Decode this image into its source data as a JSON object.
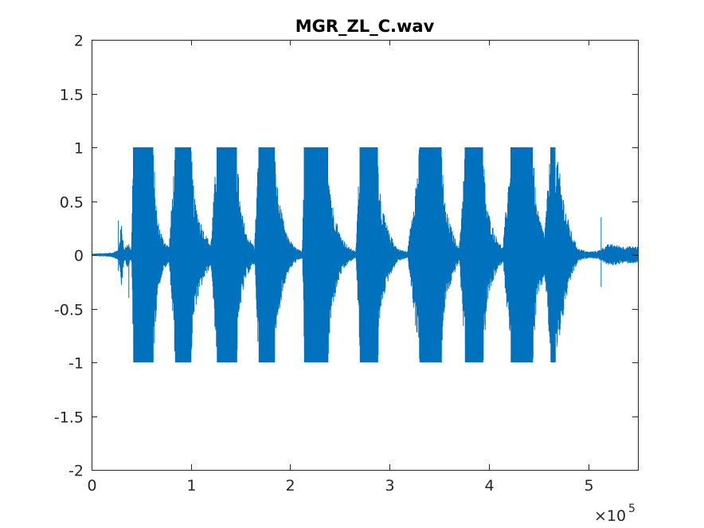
{
  "chart_data": {
    "type": "line",
    "title": "MGR_ZL_C.wav",
    "xlabel": "",
    "ylabel": "",
    "xlim": [
      0,
      550000
    ],
    "ylim": [
      -2,
      2
    ],
    "x_ticks": [
      0,
      100000,
      200000,
      300000,
      400000,
      500000
    ],
    "x_tick_labels": [
      "0",
      "1",
      "2",
      "3",
      "4",
      "5"
    ],
    "x_exponent_label": "×10",
    "x_exponent_power": "5",
    "y_ticks": [
      2,
      1.5,
      1,
      0.5,
      0,
      -0.5,
      -1,
      -1.5,
      -2
    ],
    "y_tick_labels": [
      "2",
      "1.5",
      "1",
      "0.5",
      "0",
      "-0.5",
      "-1",
      "-1.5",
      "-2"
    ],
    "grid": false,
    "series_color": "#0072BD",
    "series": [
      {
        "x": [
          0,
          20000,
          27000,
          30000,
          33000,
          36000,
          40000,
          42000,
          62000,
          66000,
          72000,
          78000,
          84000,
          100000,
          104000,
          112000,
          120000,
          126000,
          146000,
          150000,
          156000,
          164000,
          168000,
          184000,
          188000,
          196000,
          204000,
          212000,
          214000,
          238000,
          242000,
          250000,
          258000,
          266000,
          270000,
          288000,
          292000,
          300000,
          308000,
          318000,
          330000,
          352000,
          356000,
          364000,
          370000,
          376000,
          394000,
          398000,
          406000,
          414000,
          422000,
          444000,
          448000,
          456000,
          462000,
          467000,
          478000,
          484000,
          490000,
          500000,
          510000,
          520000,
          525000,
          535000,
          550000
        ],
        "amp": [
          0.01,
          0.02,
          0.05,
          0.3,
          0.05,
          0.12,
          0.05,
          1,
          1,
          0.35,
          0.15,
          0.08,
          1,
          1,
          0.5,
          0.25,
          0.1,
          1,
          1,
          0.45,
          0.2,
          0.08,
          1,
          1,
          0.55,
          0.2,
          0.08,
          0.03,
          1,
          1,
          0.5,
          0.2,
          0.08,
          0.03,
          1,
          1,
          0.45,
          0.2,
          0.06,
          0.03,
          1,
          1,
          0.45,
          0.2,
          0.06,
          1,
          1,
          0.45,
          0.2,
          0.06,
          1,
          1,
          0.45,
          0.2,
          1,
          1,
          0.4,
          0.18,
          0.06,
          0.03,
          0.04,
          0.1,
          0.1,
          0.08,
          0.08
        ]
      }
    ],
    "spikes": [
      {
        "x": 27000,
        "ymin": -0.15,
        "ymax": 0.32
      },
      {
        "x": 30000,
        "ymin": -0.28,
        "ymax": 0.15
      },
      {
        "x": 37500,
        "ymin": -0.4,
        "ymax": 0.1
      },
      {
        "x": 513000,
        "ymin": -0.3,
        "ymax": 0.35
      }
    ]
  }
}
